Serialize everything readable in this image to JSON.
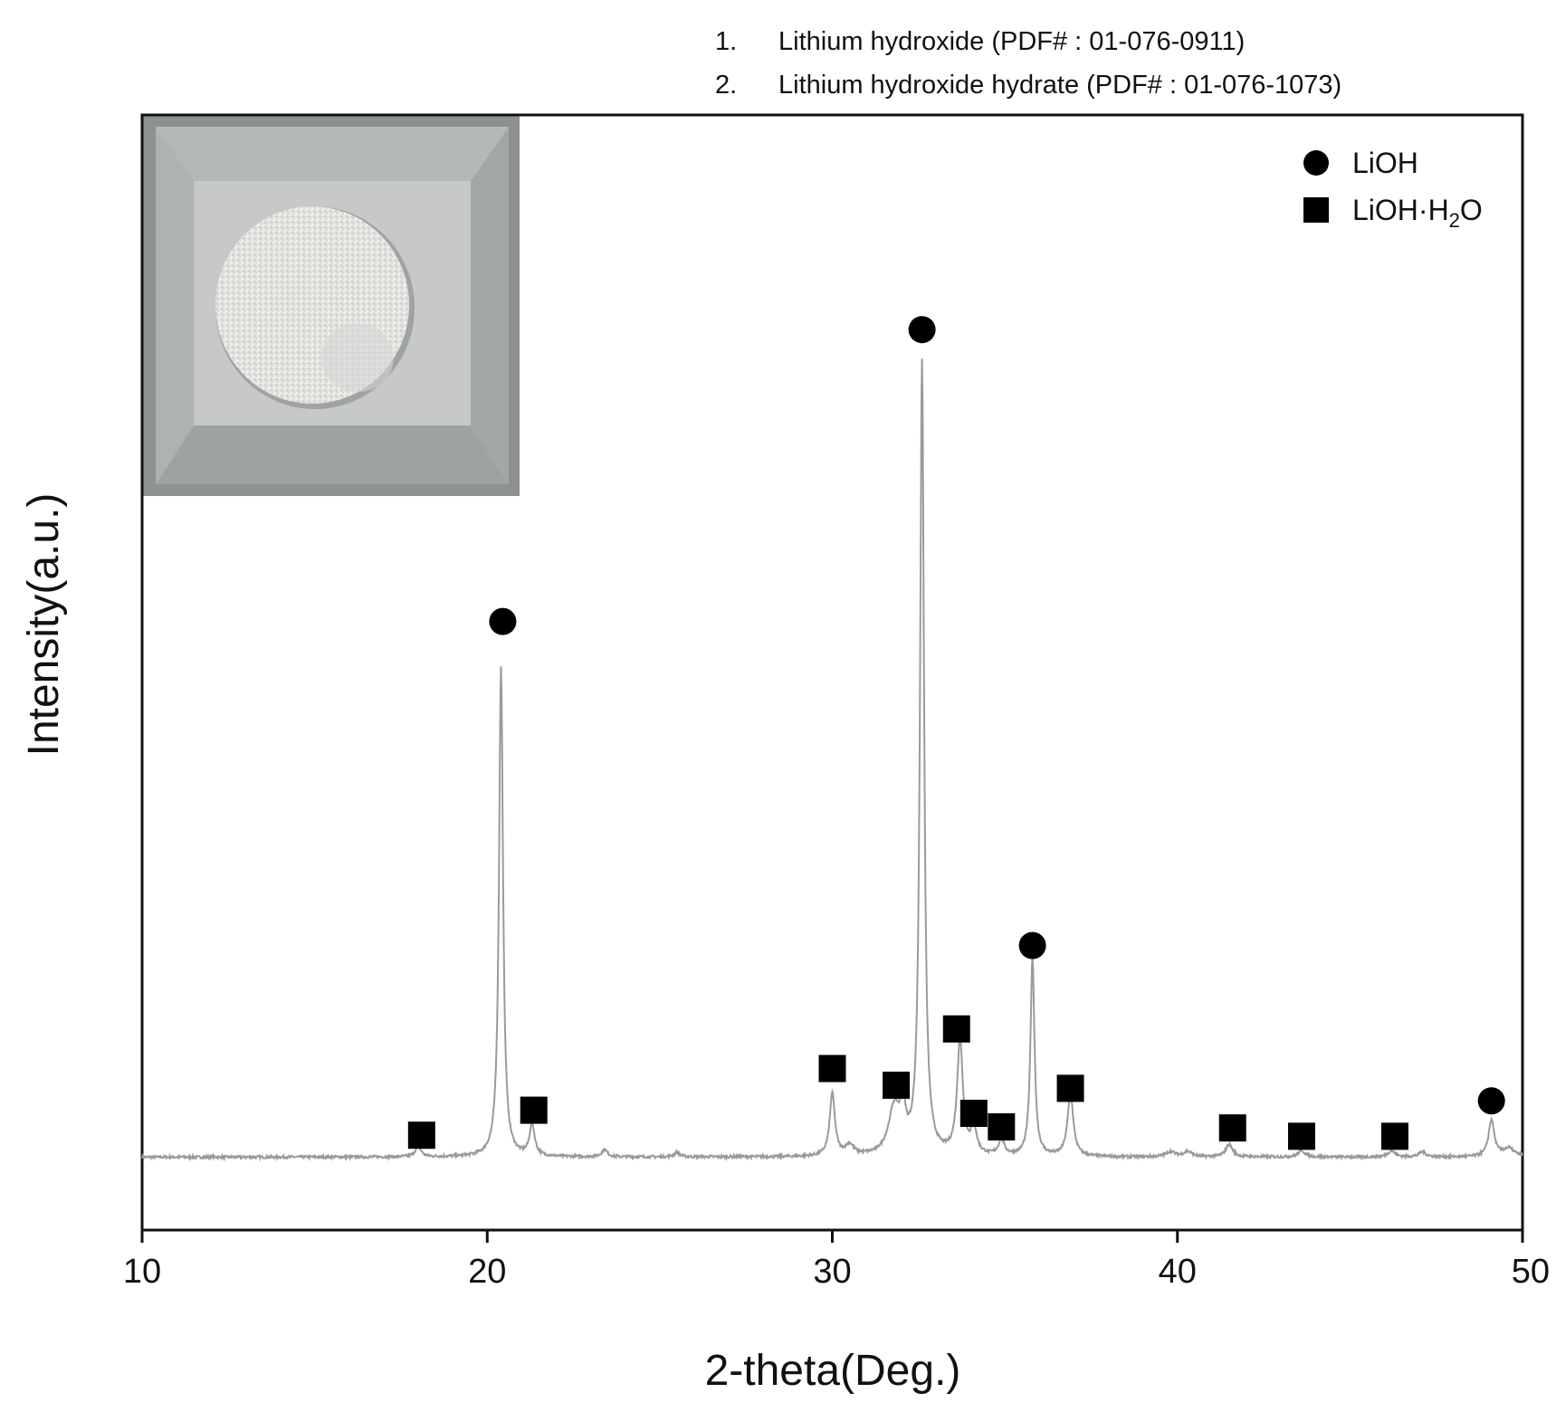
{
  "references": [
    {
      "num": "1.",
      "text": "Lithium hydroxide (PDF# : 01-076-0911)"
    },
    {
      "num": "2.",
      "text": "Lithium hydroxide hydrate (PDF# : 01-076-1073)"
    }
  ],
  "chart_data": {
    "type": "line",
    "xlabel": "2-theta(Deg.)",
    "ylabel": "Intensity(a.u.)",
    "xlim": [
      10,
      50
    ],
    "ylim": [
      -7,
      100
    ],
    "xticks": [
      10,
      20,
      30,
      40,
      50
    ],
    "yticks_shown": false,
    "grid": false,
    "legend_position": "top-right",
    "inset": "photo of white powder sample in holder",
    "legend": [
      {
        "marker": "circle",
        "label_main": "LiOH",
        "label_sub": "",
        "label_end": ""
      },
      {
        "marker": "square",
        "label_main": "LiOH·H",
        "label_sub": "2",
        "label_end": "O"
      }
    ],
    "series": [
      {
        "name": "",
        "baseline": 0,
        "peaks": [
          {
            "x": 18.0,
            "y": 1.0,
            "w": 0.1
          },
          {
            "x": 20.4,
            "y": 47.0,
            "w": 0.07
          },
          {
            "x": 21.3,
            "y": 3.0,
            "w": 0.09
          },
          {
            "x": 23.4,
            "y": 0.7,
            "w": 0.1
          },
          {
            "x": 25.5,
            "y": 0.4,
            "w": 0.1
          },
          {
            "x": 30.0,
            "y": 6.0,
            "w": 0.09
          },
          {
            "x": 30.5,
            "y": 1.0,
            "w": 0.15
          },
          {
            "x": 31.8,
            "y": 4.5,
            "w": 0.2
          },
          {
            "x": 32.05,
            "y": 3.5,
            "w": 0.09
          },
          {
            "x": 32.6,
            "y": 76.0,
            "w": 0.07
          },
          {
            "x": 33.7,
            "y": 11.0,
            "w": 0.1
          },
          {
            "x": 34.1,
            "y": 2.5,
            "w": 0.1
          },
          {
            "x": 34.9,
            "y": 1.5,
            "w": 0.1
          },
          {
            "x": 35.8,
            "y": 19.0,
            "w": 0.07
          },
          {
            "x": 36.9,
            "y": 6.0,
            "w": 0.1
          },
          {
            "x": 39.8,
            "y": 0.5,
            "w": 0.15
          },
          {
            "x": 40.3,
            "y": 0.5,
            "w": 0.15
          },
          {
            "x": 41.5,
            "y": 1.2,
            "w": 0.12
          },
          {
            "x": 43.6,
            "y": 0.6,
            "w": 0.12
          },
          {
            "x": 46.2,
            "y": 0.6,
            "w": 0.12
          },
          {
            "x": 47.1,
            "y": 0.5,
            "w": 0.12
          },
          {
            "x": 49.1,
            "y": 3.5,
            "w": 0.1
          },
          {
            "x": 49.6,
            "y": 0.8,
            "w": 0.2
          }
        ]
      }
    ],
    "peak_markers": [
      {
        "phase": "LiOH·H2O",
        "marker": "square",
        "x": 18.1,
        "y": 2.1
      },
      {
        "phase": "LiOH",
        "marker": "circle",
        "x": 20.45,
        "y": 51.4
      },
      {
        "phase": "LiOH·H2O",
        "marker": "square",
        "x": 21.35,
        "y": 4.5
      },
      {
        "phase": "LiOH·H2O",
        "marker": "square",
        "x": 30.0,
        "y": 8.5
      },
      {
        "phase": "LiOH·H2O",
        "marker": "square",
        "x": 31.85,
        "y": 6.9
      },
      {
        "phase": "LiOH",
        "marker": "circle",
        "x": 32.6,
        "y": 79.4
      },
      {
        "phase": "LiOH·H2O",
        "marker": "square",
        "x": 33.6,
        "y": 12.3
      },
      {
        "phase": "LiOH·H2O",
        "marker": "square",
        "x": 34.1,
        "y": 4.2
      },
      {
        "phase": "LiOH·H2O",
        "marker": "square",
        "x": 34.9,
        "y": 2.9
      },
      {
        "phase": "LiOH",
        "marker": "circle",
        "x": 35.8,
        "y": 20.3
      },
      {
        "phase": "LiOH·H2O",
        "marker": "square",
        "x": 36.9,
        "y": 6.6
      },
      {
        "phase": "LiOH·H2O",
        "marker": "square",
        "x": 41.6,
        "y": 2.8
      },
      {
        "phase": "LiOH·H2O",
        "marker": "square",
        "x": 43.6,
        "y": 2.0
      },
      {
        "phase": "LiOH·H2O",
        "marker": "square",
        "x": 46.3,
        "y": 2.0
      },
      {
        "phase": "LiOH",
        "marker": "circle",
        "x": 49.1,
        "y": 5.4
      }
    ]
  },
  "colors": {
    "line": "#9a9a9a",
    "axis": "#111111",
    "marker": "#000000"
  }
}
